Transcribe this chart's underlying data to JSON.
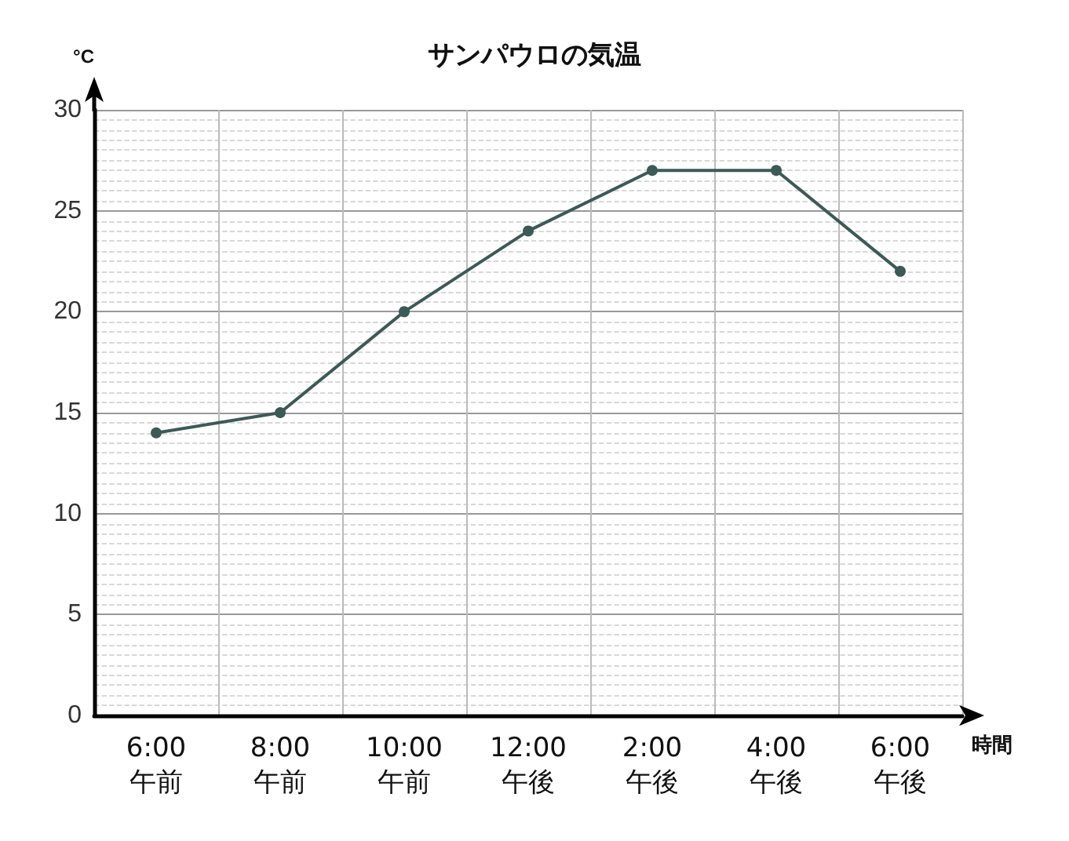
{
  "chart_data": {
    "type": "line",
    "title": "サンパウロの気温",
    "xlabel": "時間",
    "ylabel": "°C",
    "categories": [
      "6:00\n午前",
      "8:00\n午前",
      "10:00\n午前",
      "12:00\n午後",
      "2:00\n午後",
      "4:00\n午後",
      "6:00\n午後"
    ],
    "series": [
      {
        "color": "#3c5a56",
        "values": [
          14,
          15,
          20,
          24,
          27,
          27,
          22
        ]
      }
    ],
    "ylim": [
      0,
      30
    ],
    "yticks": [
      0,
      5,
      10,
      15,
      20,
      25,
      30
    ],
    "grid": true,
    "marker": "circle",
    "line_style": "solid"
  }
}
